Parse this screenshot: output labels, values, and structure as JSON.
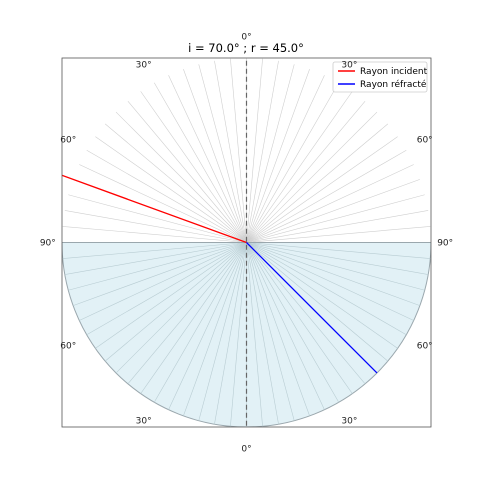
{
  "chart_data": {
    "type": "line",
    "title": "i = 70.0° ; r = 45.0°",
    "incidence_angle_deg": 70.0,
    "refraction_angle_deg": 45.0,
    "xlim": [
      -1.3,
      1.3
    ],
    "ylim": [
      -1.3,
      1.3
    ],
    "grid": false,
    "legend_position": "top-right",
    "legend": [
      {
        "label": "Rayon incident",
        "color": "#ff0000"
      },
      {
        "label": "Rayon réfracté",
        "color": "#0000ff"
      }
    ],
    "series": [
      {
        "name": "Rayon incident",
        "color": "#ff0000",
        "x": [
          -1.9734,
          0
        ],
        "y": [
          0.7182,
          0
        ]
      },
      {
        "name": "Rayon réfracté",
        "color": "#0000ff",
        "x": [
          0,
          0.9192
        ],
        "y": [
          0,
          -0.9192
        ]
      }
    ],
    "protractor": {
      "radius": 1.3,
      "lower_half_fill": "#add8e6",
      "angle_labels": [
        {
          "text": "0°",
          "angle": 0,
          "half": "top"
        },
        {
          "text": "30°",
          "angle": -30,
          "half": "top"
        },
        {
          "text": "30°",
          "angle": 30,
          "half": "top"
        },
        {
          "text": "60°",
          "angle": -60,
          "half": "top"
        },
        {
          "text": "60°",
          "angle": 60,
          "half": "top"
        },
        {
          "text": "90°",
          "angle": -90,
          "half": "top"
        },
        {
          "text": "90°",
          "angle": 90,
          "half": "top"
        },
        {
          "text": "0°",
          "angle": 0,
          "half": "bottom"
        },
        {
          "text": "30°",
          "angle": -30,
          "half": "bottom"
        },
        {
          "text": "30°",
          "angle": 30,
          "half": "bottom"
        },
        {
          "text": "60°",
          "angle": -60,
          "half": "bottom"
        },
        {
          "text": "60°",
          "angle": 60,
          "half": "bottom"
        }
      ]
    }
  }
}
